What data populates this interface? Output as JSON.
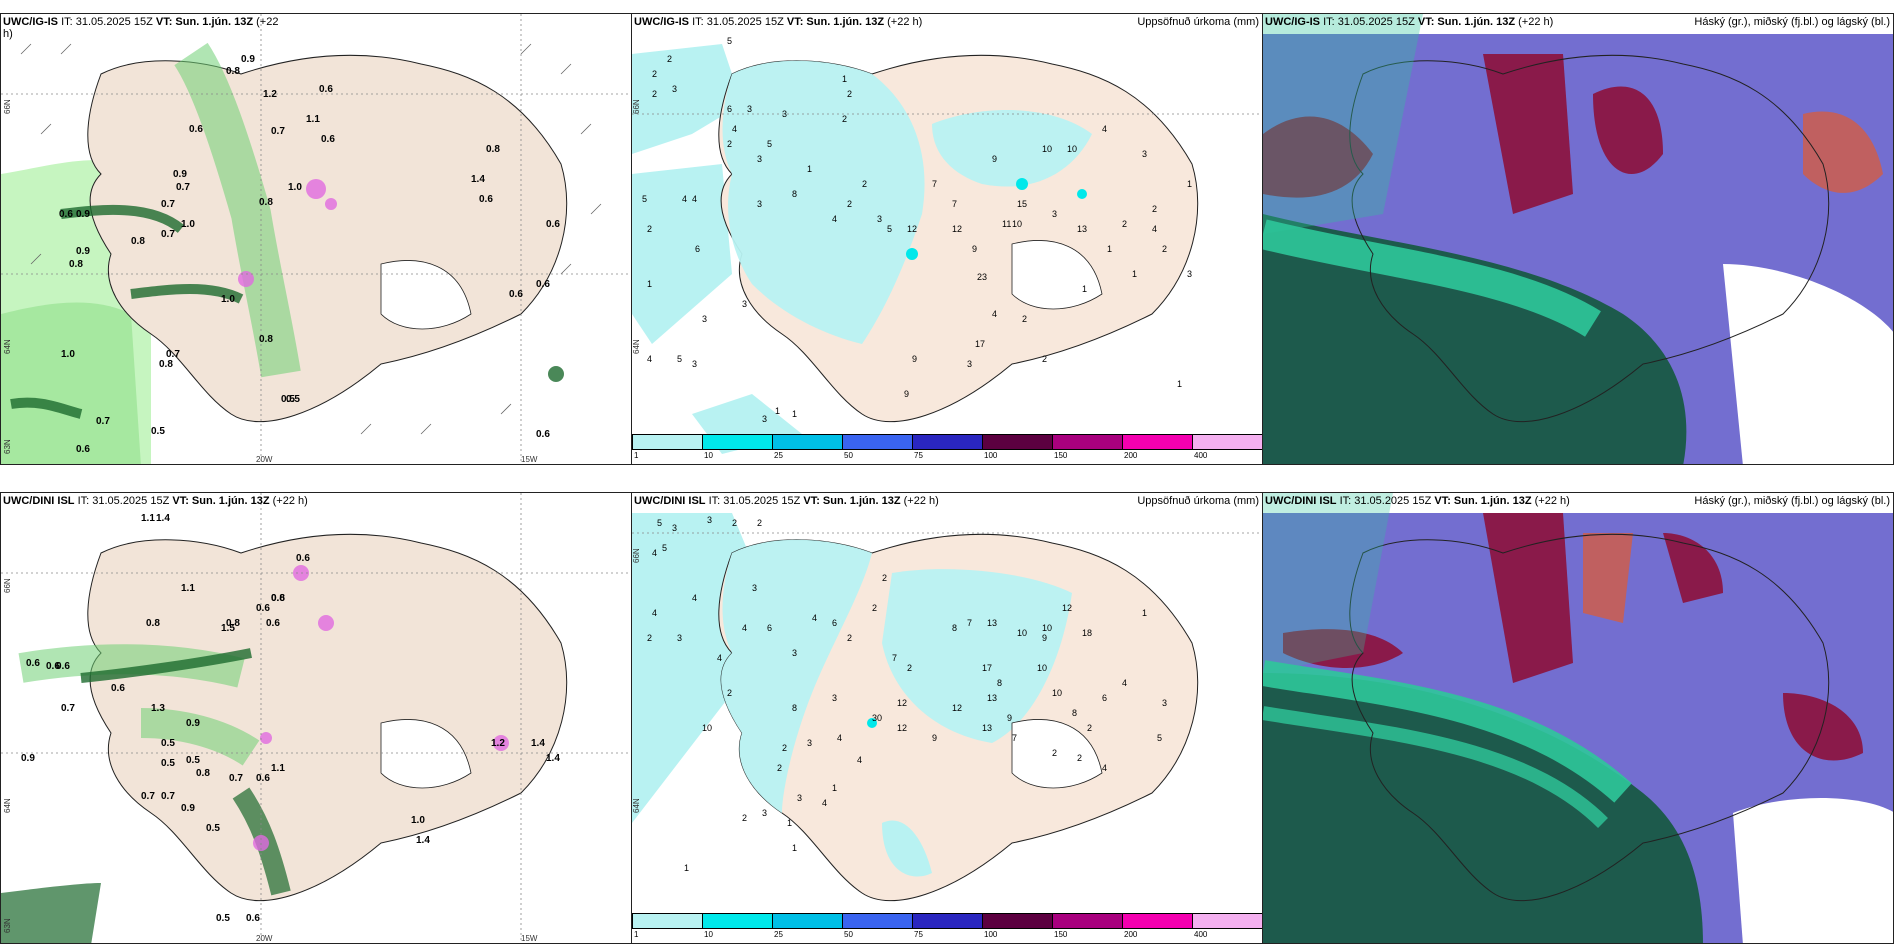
{
  "panels": [
    {
      "id": "r1c1",
      "title_model": "UWC/IG-IS",
      "title_it": "IT: 31.05.2025 15Z",
      "title_vt": "VT: Sun. 1.jún. 13Z",
      "title_lead": "(+22",
      "title_lead2": "h)",
      "right": "",
      "coords": {
        "lat1": "66N",
        "lat2": "64N",
        "lat3": "63N",
        "lon1": "20W",
        "lon2": "15W"
      },
      "values": [
        "0.9",
        "0.8",
        "1.2",
        "0.6",
        "1.1",
        "0.6",
        "0.7",
        "0.6",
        "0.9",
        "0.7",
        "1.0",
        "0.8",
        "0.7",
        "0.6",
        "1.0",
        "0.9",
        "0.8",
        "0.7",
        "0.9",
        "0.8",
        "1.0",
        "0.7",
        "0.8",
        "0.5",
        "1.0",
        "0.8",
        "0.7",
        "0.5",
        "0.6",
        "1.4",
        "0.6",
        "0.5",
        "0.6",
        "0.6",
        "0.6",
        "0.8",
        "0.6"
      ]
    },
    {
      "id": "r1c2",
      "title_model": "UWC/IG-IS",
      "title_it": "IT: 31.05.2025 15Z",
      "title_vt": "VT: Sun. 1.jún. 13Z",
      "title_lead": "(+22 h)",
      "right": "Uppsöfnuð úrkoma (mm)",
      "coords": {
        "lat1": "66N",
        "lat2": "64N"
      },
      "values": [
        "2",
        "5",
        "3",
        "2",
        "2",
        "1",
        "2",
        "6",
        "3",
        "4",
        "3",
        "5",
        "3",
        "2",
        "5",
        "4",
        "4",
        "2",
        "1",
        "3",
        "3",
        "5",
        "1",
        "3",
        "4",
        "3",
        "2",
        "3",
        "1",
        "3",
        "2",
        "8",
        "4",
        "6",
        "7",
        "12",
        "9",
        "7",
        "11",
        "10",
        "15",
        "9",
        "23",
        "17",
        "13",
        "12",
        "10",
        "10",
        "4",
        "5",
        "3",
        "2",
        "9",
        "4",
        "2",
        "3",
        "9",
        "1",
        "1",
        "2",
        "1",
        "2",
        "3",
        "1",
        "1",
        "4",
        "2",
        "3",
        "2",
        "1"
      ]
    },
    {
      "id": "r1c3",
      "title_model": "UWC/IG-IS",
      "title_it": "IT: 31.05.2025 15Z",
      "title_vt": "VT: Sun. 1.jún. 13Z",
      "title_lead": "(+22 h)",
      "right": "Háský (gr.), miðský (fj.bl.) og lágský (bl.)"
    },
    {
      "id": "r2c1",
      "title_model": "UWC/DINI ISL",
      "title_it": "IT: 31.05.2025 15Z",
      "title_vt": "VT: Sun. 1.jún. 13Z",
      "title_lead": "(+22 h)",
      "right": "",
      "coords": {
        "lat1": "66N",
        "lat2": "64N",
        "lat3": "63N",
        "lon1": "20W",
        "lon2": "15W"
      },
      "values": [
        "1.1",
        "1.4",
        "0.6",
        "0.6",
        "0.8",
        "0.8",
        "0.5",
        "0.6",
        "1.1",
        "0.6",
        "0.6",
        "1.3",
        "0.7",
        "1.4",
        "0.5",
        "0.9",
        "0.5",
        "0.8",
        "0.7",
        "0.5",
        "0.7",
        "0.6",
        "0.7",
        "0.9",
        "0.6",
        "1.1",
        "0.6",
        "0.5",
        "0.6",
        "0.6",
        "1.2",
        "1.4",
        "1.0",
        "1.4",
        "0.9",
        "1.5",
        "0.8"
      ]
    },
    {
      "id": "r2c2",
      "title_model": "UWC/DINI ISL",
      "title_it": "IT: 31.05.2025 15Z",
      "title_vt": "VT: Sun. 1.jún. 13Z",
      "title_lead": "(+22 h)",
      "right": "Uppsöfnuð úrkoma (mm)",
      "coords": {
        "lat1": "66N",
        "lat2": "64N"
      },
      "values": [
        "5",
        "3",
        "2",
        "4",
        "3",
        "2",
        "4",
        "2",
        "3",
        "5",
        "1",
        "4",
        "4",
        "2",
        "3",
        "6",
        "3",
        "4",
        "4",
        "6",
        "10",
        "2",
        "1",
        "3",
        "8",
        "2",
        "2",
        "7",
        "4",
        "12",
        "2",
        "8",
        "7",
        "13",
        "10",
        "9",
        "12",
        "18",
        "10",
        "9",
        "10",
        "8",
        "6",
        "17",
        "10",
        "12",
        "30",
        "12",
        "13",
        "9",
        "13",
        "7",
        "8",
        "2",
        "3",
        "5",
        "4",
        "2",
        "4",
        "2",
        "1",
        "3",
        "4",
        "2",
        "3",
        "1",
        "1",
        "2",
        "4",
        "3",
        "2"
      ]
    },
    {
      "id": "r2c3",
      "title_model": "UWC/DINI ISL",
      "title_it": "IT: 31.05.2025 15Z",
      "title_vt": "VT: Sun. 1.jún. 13Z",
      "title_lead": "(+22 h)",
      "right": "Háský (gr.), miðský (fj.bl.) og lágský (bl.)"
    }
  ],
  "colorbar": {
    "ticks": [
      "1",
      "10",
      "25",
      "50",
      "75",
      "100",
      "150",
      "200",
      "400"
    ],
    "colors": [
      "#b8f2f2",
      "#00e8ea",
      "#00bfe6",
      "#3a64f0",
      "#2a26c0",
      "#5c0040",
      "#a8007e",
      "#f400b0",
      "#f4b0f0"
    ]
  },
  "colors": {
    "land": "#f2e4d8",
    "precip_light": "#b8f2f2",
    "green_light": "#c6f5c0",
    "green_mid": "#6fcf74",
    "green_dark": "#1d6a2e",
    "cloud_high": "#2fc79a",
    "cloud_mid": "#5a55c8",
    "cloud_low": "#8a1a4a"
  }
}
